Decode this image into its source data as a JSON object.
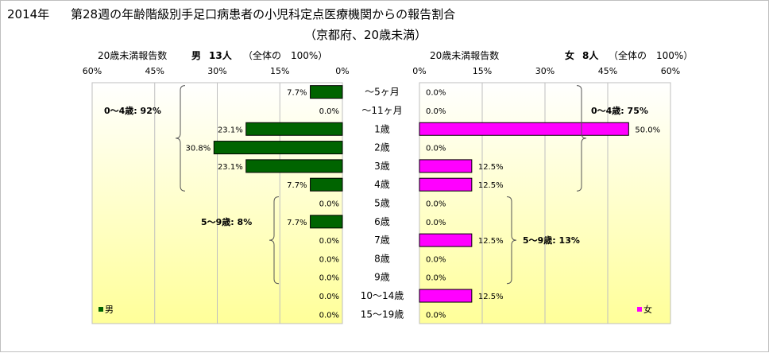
{
  "header": {
    "year": "2014年",
    "title_main": "第28週の年齢階級別手足口病患者の小児科定点医療機関からの報告割合",
    "title_region": "（京都府、20歳未満）"
  },
  "colors": {
    "male": "#006400",
    "female": "#ff00ff",
    "plot_top": "#ffffff",
    "plot_bottom": "#ffff99"
  },
  "chart_data": [
    {
      "type": "bar",
      "orientation": "horizontal",
      "direction": "right-to-left",
      "header_left": "20歳未満報告数",
      "header_sex": "男",
      "header_count": "13人",
      "header_total": "（全体の　100%）",
      "xticks": [
        "60%",
        "45%",
        "30%",
        "15%",
        "0%"
      ],
      "xlim": [
        0,
        60
      ],
      "categories": [
        "〜5ヶ月",
        "〜11ヶ月",
        "1歳",
        "2歳",
        "3歳",
        "4歳",
        "5歳",
        "6歳",
        "7歳",
        "8歳",
        "9歳",
        "10〜14歳",
        "15〜19歳"
      ],
      "series": [
        {
          "name": "男",
          "values": [
            7.7,
            0.0,
            23.1,
            30.8,
            23.1,
            7.7,
            0.0,
            7.7,
            0.0,
            0.0,
            0.0,
            0.0,
            0.0
          ]
        }
      ],
      "data_labels": [
        "7.7%",
        "0.0%",
        "23.1%",
        "30.8%",
        "23.1%",
        "7.7%",
        "0.0%",
        "7.7%",
        "0.0%",
        "0.0%",
        "0.0%",
        "0.0%",
        "0.0%"
      ],
      "annotations": [
        {
          "text": "0〜4歳: 92%",
          "from": 0,
          "to": 5
        },
        {
          "text": "5〜9歳: 8%",
          "from": 6,
          "to": 10
        }
      ],
      "legend": "男"
    },
    {
      "type": "bar",
      "orientation": "horizontal",
      "direction": "left-to-right",
      "header_left": "20歳未満報告数",
      "header_sex": "女",
      "header_count": "8人",
      "header_total": "（全体の　100%）",
      "xticks": [
        "0%",
        "15%",
        "30%",
        "45%",
        "60%"
      ],
      "xlim": [
        0,
        60
      ],
      "categories": [
        "〜5ヶ月",
        "〜11ヶ月",
        "1歳",
        "2歳",
        "3歳",
        "4歳",
        "5歳",
        "6歳",
        "7歳",
        "8歳",
        "9歳",
        "10〜14歳",
        "15〜19歳"
      ],
      "series": [
        {
          "name": "女",
          "values": [
            0.0,
            0.0,
            50.0,
            0.0,
            12.5,
            12.5,
            0.0,
            0.0,
            12.5,
            0.0,
            0.0,
            12.5,
            0.0
          ]
        }
      ],
      "data_labels": [
        "0.0%",
        "0.0%",
        "50.0%",
        "0.0%",
        "12.5%",
        "12.5%",
        "0.0%",
        "0.0%",
        "12.5%",
        "0.0%",
        "0.0%",
        "12.5%",
        "0.0%"
      ],
      "annotations": [
        {
          "text": "0〜4歳: 75%",
          "from": 0,
          "to": 5
        },
        {
          "text": "5〜9歳: 13%",
          "from": 6,
          "to": 10
        }
      ],
      "legend": "女"
    }
  ]
}
